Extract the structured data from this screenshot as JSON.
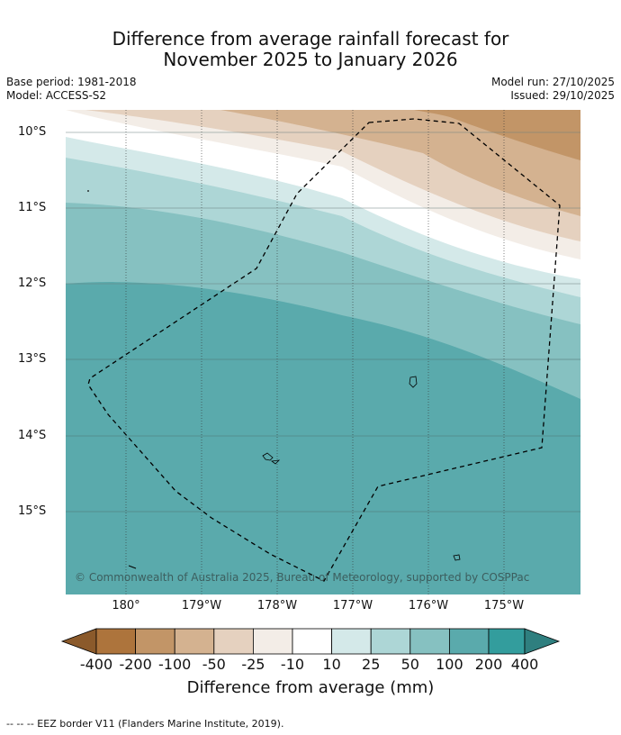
{
  "title": {
    "line1": "Difference from average rainfall forecast for",
    "line2": "November 2025 to January 2026"
  },
  "meta": {
    "base_period": "Base period: 1981-2018",
    "model": "Model: ACCESS-S2",
    "model_run": "Model run: 27/10/2025",
    "issued": "Issued: 29/10/2025"
  },
  "map": {
    "latitude_labels": [
      "10°S",
      "11°S",
      "12°S",
      "13°S",
      "14°S",
      "15°S"
    ],
    "longitude_labels": [
      "180°",
      "179°W",
      "178°W",
      "177°W",
      "176°W",
      "175°W"
    ],
    "copyright": "© Commonwealth of Australia 2025, Bureau of Meteorology, supported by COSPPac"
  },
  "colorbar": {
    "title": "Difference from average (mm)",
    "tick_labels": [
      "-400",
      "-200",
      "-100",
      "-50",
      "-25",
      "-10",
      "10",
      "25",
      "50",
      "100",
      "200",
      "400"
    ],
    "colors": [
      "#8b5a2b",
      "#ad743c",
      "#c29567",
      "#d4b290",
      "#e5d1bf",
      "#f3ede7",
      "#ffffff",
      "#d4e9e9",
      "#add6d6",
      "#86c1c1",
      "#5aaaac",
      "#339d9d",
      "#2f7f7f"
    ]
  },
  "legend": {
    "eez": "--  --  -- EEZ border V11 (Flanders Marine Institute, 2019)."
  }
}
